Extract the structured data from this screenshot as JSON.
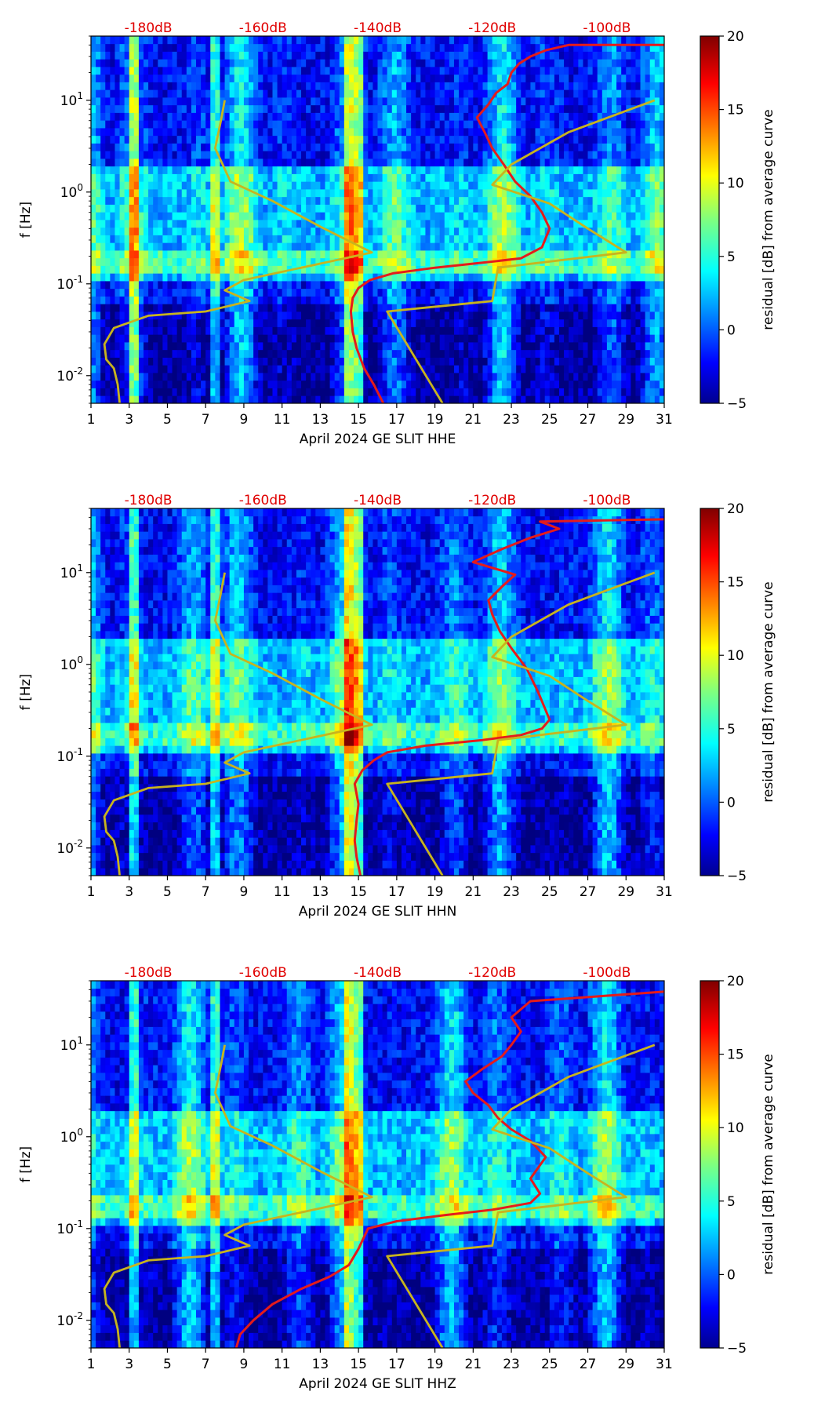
{
  "chart_data": [
    {
      "type": "heatmap",
      "title": "",
      "xlabel": "April 2024 GE SLIT  HHE",
      "ylabel": "f [Hz]",
      "x_ticks": [
        "1",
        "3",
        "5",
        "7",
        "9",
        "11",
        "13",
        "15",
        "17",
        "19",
        "21",
        "23",
        "25",
        "27",
        "29",
        "31"
      ],
      "y_ticks": [
        "10^-2",
        "10^-1",
        "10^0",
        "10^1"
      ],
      "ylim": [
        0.005,
        50
      ],
      "xlim": [
        1,
        31
      ],
      "top_ticks": [
        "-180dB",
        "-160dB",
        "-140dB",
        "-120dB",
        "-100dB"
      ],
      "colorbar": {
        "label": "residual [dB] from average curve",
        "ticks": [
          "−5",
          "0",
          "5",
          "10",
          "15",
          "20"
        ],
        "range": [
          -5,
          20
        ],
        "colormap": "jet"
      },
      "series": [
        {
          "name": "red curve",
          "color": "#e51b1b",
          "x": [
            16.3,
            15.8,
            15.3,
            14.9,
            14.7,
            14.6,
            14.7,
            15.0,
            15.6,
            16.8,
            19.0,
            21.5,
            23.5,
            24.6,
            25.0,
            24.6,
            24.0,
            23.2,
            22.6,
            22.0,
            21.6,
            21.2,
            21.8,
            22.2,
            22.8,
            23.0,
            23.4,
            24.0,
            24.8,
            26.0,
            31
          ],
          "y": [
            0.005,
            0.008,
            0.012,
            0.02,
            0.03,
            0.05,
            0.07,
            0.09,
            0.11,
            0.13,
            0.15,
            0.17,
            0.19,
            0.25,
            0.4,
            0.6,
            0.9,
            1.3,
            2.0,
            3.0,
            4.5,
            6.5,
            9.0,
            12,
            15,
            20,
            25,
            30,
            35,
            40,
            40
          ]
        },
        {
          "name": "yellow noise model curve (low)",
          "color": "#c8b41e",
          "x": [
            2.5,
            2.4,
            2.2,
            1.8,
            1.7,
            2.2,
            4.0,
            7.0,
            9.3,
            8.0,
            9.0,
            12.0,
            15.7,
            13.0,
            10.5,
            8.3,
            7.5,
            7.8,
            8.0
          ],
          "y": [
            0.005,
            0.008,
            0.012,
            0.015,
            0.022,
            0.033,
            0.045,
            0.05,
            0.065,
            0.085,
            0.11,
            0.15,
            0.22,
            0.42,
            0.8,
            1.3,
            3.0,
            6.0,
            10.0
          ]
        },
        {
          "name": "yellow noise model curve (high)",
          "color": "#c8b41e",
          "x": [
            19.4,
            16.5,
            22.0,
            22.3,
            29.0,
            27.0,
            25.0,
            22.0,
            23.0,
            24.5,
            26.0,
            30.5
          ],
          "y": [
            0.005,
            0.05,
            0.065,
            0.15,
            0.22,
            0.4,
            0.75,
            1.2,
            2.0,
            3.0,
            4.5,
            10.0
          ]
        }
      ]
    },
    {
      "type": "heatmap",
      "title": "",
      "xlabel": "April 2024 GE SLIT  HHN",
      "ylabel": "f [Hz]",
      "x_ticks": [
        "1",
        "3",
        "5",
        "7",
        "9",
        "11",
        "13",
        "15",
        "17",
        "19",
        "21",
        "23",
        "25",
        "27",
        "29",
        "31"
      ],
      "y_ticks": [
        "10^-2",
        "10^-1",
        "10^0",
        "10^1"
      ],
      "ylim": [
        0.005,
        50
      ],
      "xlim": [
        1,
        31
      ],
      "top_ticks": [
        "-180dB",
        "-160dB",
        "-140dB",
        "-120dB",
        "-100dB"
      ],
      "colorbar": {
        "label": "residual [dB] from average curve",
        "ticks": [
          "−5",
          "0",
          "5",
          "10",
          "15",
          "20"
        ],
        "range": [
          -5,
          20
        ],
        "colormap": "jet"
      },
      "series": [
        {
          "name": "red curve",
          "color": "#e51b1b",
          "x": [
            15.1,
            14.9,
            14.8,
            14.9,
            15.0,
            14.8,
            15.2,
            15.8,
            16.5,
            18.5,
            21.5,
            23.5,
            24.6,
            25.0,
            24.4,
            23.8,
            23.0,
            22.4,
            22.0,
            21.8,
            22.5,
            23.2,
            21.0,
            22.5,
            24.0,
            25.5,
            24.5,
            31
          ],
          "y": [
            0.005,
            0.008,
            0.012,
            0.02,
            0.03,
            0.05,
            0.07,
            0.09,
            0.11,
            0.13,
            0.15,
            0.17,
            0.2,
            0.25,
            0.5,
            0.9,
            1.5,
            2.3,
            3.5,
            5.0,
            7.0,
            9.5,
            13,
            18,
            24,
            30,
            36,
            38
          ]
        },
        {
          "name": "yellow noise model curve (low)",
          "color": "#c8b41e",
          "x": [
            2.5,
            2.4,
            2.2,
            1.8,
            1.7,
            2.2,
            4.0,
            7.0,
            9.3,
            8.0,
            9.0,
            12.0,
            15.7,
            13.0,
            10.5,
            8.3,
            7.5,
            7.8,
            8.0
          ],
          "y": [
            0.005,
            0.008,
            0.012,
            0.015,
            0.022,
            0.033,
            0.045,
            0.05,
            0.065,
            0.085,
            0.11,
            0.15,
            0.22,
            0.42,
            0.8,
            1.3,
            3.0,
            6.0,
            10.0
          ]
        },
        {
          "name": "yellow noise model curve (high)",
          "color": "#c8b41e",
          "x": [
            19.4,
            16.5,
            22.0,
            22.3,
            29.0,
            27.0,
            25.0,
            22.0,
            23.0,
            24.5,
            26.0,
            30.5
          ],
          "y": [
            0.005,
            0.05,
            0.065,
            0.15,
            0.22,
            0.4,
            0.75,
            1.2,
            2.0,
            3.0,
            4.5,
            10.0
          ]
        }
      ]
    },
    {
      "type": "heatmap",
      "title": "",
      "xlabel": "April 2024 GE SLIT  HHZ",
      "ylabel": "f [Hz]",
      "x_ticks": [
        "1",
        "3",
        "5",
        "7",
        "9",
        "11",
        "13",
        "15",
        "17",
        "19",
        "21",
        "23",
        "25",
        "27",
        "29",
        "31"
      ],
      "y_ticks": [
        "10^-2",
        "10^-1",
        "10^0",
        "10^1"
      ],
      "ylim": [
        0.005,
        50
      ],
      "xlim": [
        1,
        31
      ],
      "top_ticks": [
        "-180dB",
        "-160dB",
        "-140dB",
        "-120dB",
        "-100dB"
      ],
      "colorbar": {
        "label": "residual [dB] from average curve",
        "ticks": [
          "−5",
          "0",
          "5",
          "10",
          "15",
          "20"
        ],
        "range": [
          -5,
          20
        ],
        "colormap": "jet"
      },
      "series": [
        {
          "name": "red curve",
          "color": "#e51b1b",
          "x": [
            8.6,
            8.8,
            9.5,
            10.5,
            12.0,
            13.5,
            14.5,
            15.0,
            15.5,
            17.0,
            19.5,
            22.0,
            24.0,
            24.5,
            24.0,
            24.8,
            24.0,
            23.0,
            22.3,
            21.8,
            21.0,
            20.6,
            21.5,
            22.5,
            23.0,
            23.5,
            23.0,
            24.0,
            31
          ],
          "y": [
            0.005,
            0.007,
            0.01,
            0.015,
            0.022,
            0.03,
            0.04,
            0.06,
            0.1,
            0.12,
            0.14,
            0.16,
            0.19,
            0.24,
            0.35,
            0.6,
            0.9,
            1.2,
            1.6,
            2.2,
            3.0,
            4.0,
            5.5,
            7.5,
            10,
            14,
            20,
            30,
            38
          ]
        },
        {
          "name": "yellow noise model curve (low)",
          "color": "#c8b41e",
          "x": [
            2.5,
            2.4,
            2.2,
            1.8,
            1.7,
            2.2,
            4.0,
            7.0,
            9.3,
            8.0,
            9.0,
            12.0,
            15.7,
            13.0,
            10.5,
            8.3,
            7.5,
            7.8,
            8.0
          ],
          "y": [
            0.005,
            0.008,
            0.012,
            0.015,
            0.022,
            0.033,
            0.045,
            0.05,
            0.065,
            0.085,
            0.11,
            0.15,
            0.22,
            0.42,
            0.8,
            1.3,
            3.0,
            6.0,
            10.0
          ]
        },
        {
          "name": "yellow noise model curve (high)",
          "color": "#c8b41e",
          "x": [
            19.4,
            16.5,
            22.0,
            22.3,
            29.0,
            27.0,
            25.0,
            22.0,
            23.0,
            24.5,
            26.0,
            30.5
          ],
          "y": [
            0.005,
            0.05,
            0.065,
            0.15,
            0.22,
            0.4,
            0.75,
            1.2,
            2.0,
            3.0,
            4.5,
            10.0
          ]
        }
      ]
    }
  ]
}
